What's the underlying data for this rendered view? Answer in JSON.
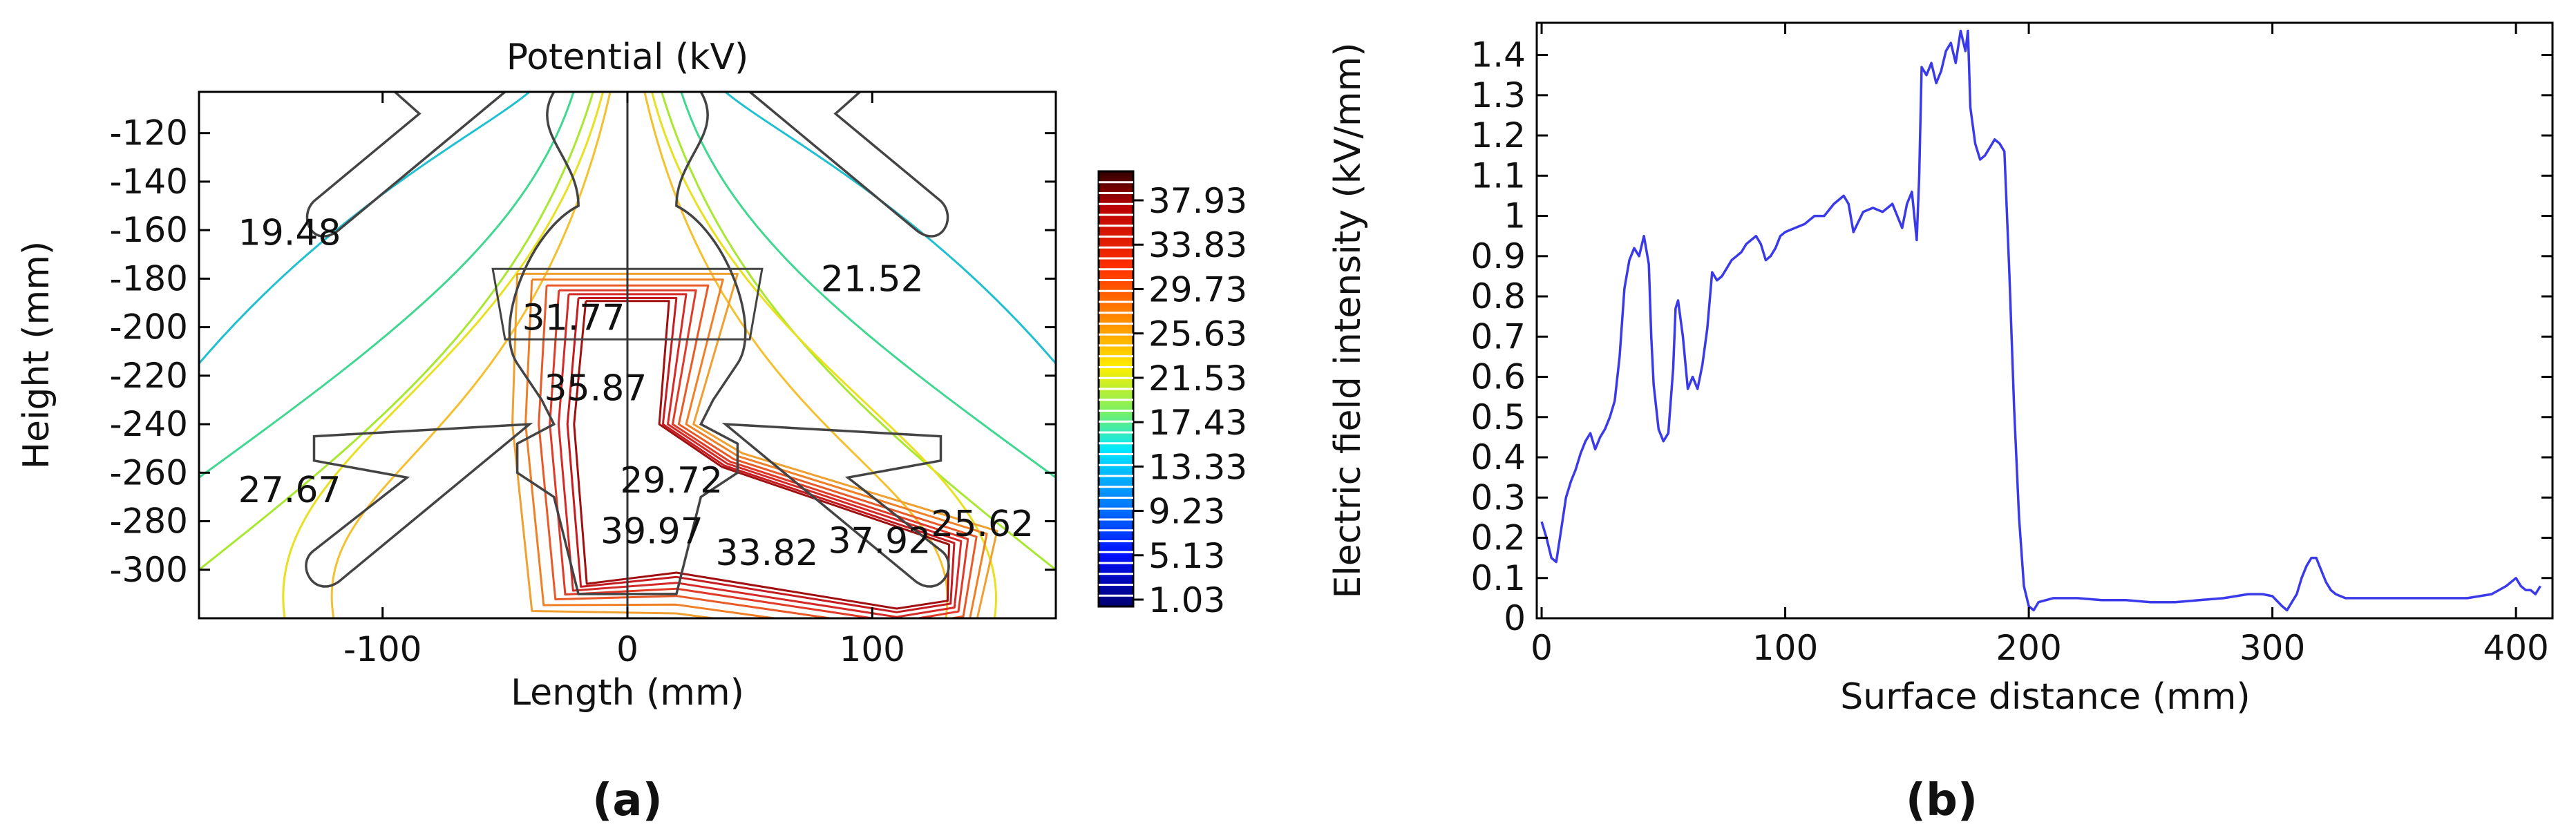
{
  "chart_data": [
    {
      "panel": "(a)",
      "type": "contour",
      "title": "Potential (kV)",
      "xlabel": "Length (mm)",
      "ylabel": "Height (mm)",
      "xlim": [
        -175,
        175
      ],
      "ylim": [
        -320,
        -103
      ],
      "xticks": [
        -100,
        0,
        100
      ],
      "yticks": [
        -120,
        -140,
        -160,
        -180,
        -200,
        -220,
        -240,
        -260,
        -280,
        -300
      ],
      "colorbar_ticks": [
        "37.93",
        "33.83",
        "29.73",
        "25.63",
        "21.53",
        "17.43",
        "13.33",
        "9.23",
        "5.13",
        "1.03"
      ],
      "contour_labels": [
        {
          "text": "19.48",
          "x": -138,
          "y": -161
        },
        {
          "text": "21.52",
          "x": 100,
          "y": -180
        },
        {
          "text": "31.77",
          "x": -22,
          "y": -196
        },
        {
          "text": "35.87",
          "x": -13,
          "y": -225
        },
        {
          "text": "29.72",
          "x": 18,
          "y": -263
        },
        {
          "text": "27.67",
          "x": -138,
          "y": -267
        },
        {
          "text": "25.62",
          "x": 145,
          "y": -281
        },
        {
          "text": "39.97",
          "x": 10,
          "y": -284
        },
        {
          "text": "37.92",
          "x": 103,
          "y": -288
        },
        {
          "text": "33.82",
          "x": 57,
          "y": -293
        }
      ]
    },
    {
      "panel": "(b)",
      "type": "line",
      "xlabel": "Surface distance (mm)",
      "ylabel": "Electric field intensity (kV/mm)",
      "xlim": [
        -2,
        415
      ],
      "ylim": [
        0,
        1.48
      ],
      "xticks": [
        0,
        100,
        200,
        300,
        400
      ],
      "yticks": [
        0,
        0.1,
        0.2,
        0.3,
        0.4,
        0.5,
        0.6,
        0.7,
        0.8,
        0.9,
        1,
        1.1,
        1.2,
        1.3,
        1.4
      ],
      "series": [
        {
          "color": "#3a3ae8",
          "x": [
            0,
            2,
            4,
            6,
            8,
            10,
            12,
            14,
            16,
            18,
            20,
            22,
            24,
            26,
            28,
            30,
            32,
            34,
            36,
            38,
            40,
            42,
            44,
            45,
            46,
            48,
            50,
            52,
            54,
            55,
            56,
            58,
            60,
            62,
            64,
            66,
            68,
            70,
            72,
            74,
            76,
            78,
            80,
            82,
            84,
            86,
            88,
            90,
            92,
            94,
            96,
            98,
            100,
            104,
            108,
            112,
            116,
            120,
            124,
            126,
            128,
            132,
            136,
            140,
            144,
            148,
            150,
            152,
            154,
            155,
            156,
            158,
            160,
            162,
            164,
            166,
            168,
            170,
            172,
            174,
            175,
            176,
            178,
            180,
            182,
            184,
            186,
            188,
            190,
            192,
            194,
            196,
            198,
            200,
            202,
            204,
            210,
            220,
            230,
            240,
            250,
            256,
            260,
            270,
            280,
            290,
            296,
            300,
            304,
            306,
            308,
            310,
            312,
            314,
            316,
            318,
            320,
            322,
            324,
            326,
            328,
            330,
            340,
            350,
            360,
            370,
            380,
            390,
            396,
            400,
            402,
            404,
            406,
            408,
            410
          ],
          "y": [
            0.24,
            0.2,
            0.15,
            0.14,
            0.22,
            0.3,
            0.34,
            0.37,
            0.41,
            0.44,
            0.46,
            0.42,
            0.45,
            0.47,
            0.5,
            0.54,
            0.65,
            0.82,
            0.89,
            0.92,
            0.9,
            0.95,
            0.88,
            0.7,
            0.58,
            0.47,
            0.44,
            0.46,
            0.62,
            0.77,
            0.79,
            0.7,
            0.57,
            0.6,
            0.57,
            0.63,
            0.72,
            0.86,
            0.84,
            0.85,
            0.87,
            0.89,
            0.9,
            0.91,
            0.93,
            0.94,
            0.95,
            0.93,
            0.89,
            0.9,
            0.92,
            0.95,
            0.96,
            0.97,
            0.98,
            1.0,
            1.0,
            1.03,
            1.05,
            1.03,
            0.96,
            1.01,
            1.02,
            1.01,
            1.03,
            0.97,
            1.03,
            1.06,
            0.94,
            1.1,
            1.37,
            1.35,
            1.38,
            1.33,
            1.36,
            1.41,
            1.43,
            1.38,
            1.46,
            1.41,
            1.46,
            1.27,
            1.18,
            1.14,
            1.15,
            1.17,
            1.19,
            1.18,
            1.16,
            0.86,
            0.52,
            0.25,
            0.08,
            0.03,
            0.02,
            0.04,
            0.05,
            0.05,
            0.045,
            0.045,
            0.04,
            0.04,
            0.04,
            0.045,
            0.05,
            0.06,
            0.06,
            0.055,
            0.03,
            0.02,
            0.04,
            0.06,
            0.1,
            0.13,
            0.15,
            0.15,
            0.12,
            0.09,
            0.07,
            0.06,
            0.055,
            0.05,
            0.05,
            0.05,
            0.05,
            0.05,
            0.05,
            0.06,
            0.08,
            0.1,
            0.08,
            0.07,
            0.07,
            0.06,
            0.08
          ]
        }
      ]
    }
  ],
  "captions": {
    "a": "(a)",
    "b": "(b)"
  },
  "colors": {
    "colorbar": [
      "#a01010",
      "#e23000",
      "#ff7a00",
      "#ffd000",
      "#c7f400",
      "#20e890",
      "#00e0f0",
      "#0070ff",
      "#0010f0",
      "#00007a"
    ]
  }
}
